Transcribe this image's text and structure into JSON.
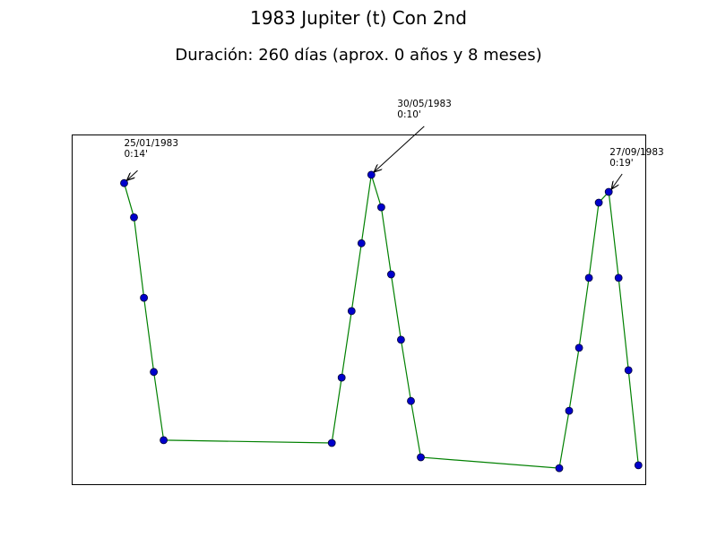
{
  "title": "1983 Jupiter (t) Con 2nd",
  "subtitle": "Duración: 260 días (aprox. 0 años y 8 meses)",
  "colors": {
    "line": "#008000",
    "marker_fill": "#0000cc",
    "marker_edge": "#000033",
    "axes": "#000000"
  },
  "chart_data": {
    "type": "line",
    "title": "1983 Jupiter (t) Con 2nd",
    "subtitle": "Duración: 260 días (aprox. 0 años y 8 meses)",
    "xlabel": "",
    "ylabel": "",
    "grid": false,
    "xlim": [
      0,
      58
    ],
    "ylim": [
      0,
      100
    ],
    "points": [
      {
        "x": 5.3,
        "y": 86.1
      },
      {
        "x": 6.3,
        "y": 76.3
      },
      {
        "x": 7.3,
        "y": 53.3
      },
      {
        "x": 8.3,
        "y": 32.1
      },
      {
        "x": 9.3,
        "y": 12.6
      },
      {
        "x": 26.3,
        "y": 11.8
      },
      {
        "x": 27.3,
        "y": 30.5
      },
      {
        "x": 28.3,
        "y": 49.5
      },
      {
        "x": 29.3,
        "y": 68.9
      },
      {
        "x": 30.3,
        "y": 88.5
      },
      {
        "x": 31.3,
        "y": 79.2
      },
      {
        "x": 32.3,
        "y": 60.0
      },
      {
        "x": 33.3,
        "y": 41.3
      },
      {
        "x": 34.3,
        "y": 23.8
      },
      {
        "x": 35.3,
        "y": 7.7
      },
      {
        "x": 49.3,
        "y": 4.6
      },
      {
        "x": 50.3,
        "y": 21.0
      },
      {
        "x": 51.3,
        "y": 39.0
      },
      {
        "x": 52.3,
        "y": 59.0
      },
      {
        "x": 53.3,
        "y": 80.5
      },
      {
        "x": 54.3,
        "y": 83.6
      },
      {
        "x": 55.3,
        "y": 59.0
      },
      {
        "x": 56.3,
        "y": 32.6
      },
      {
        "x": 57.3,
        "y": 5.4
      }
    ],
    "annotations": [
      {
        "point_index": 0,
        "date": "25/01/1983",
        "value": "0:14'"
      },
      {
        "point_index": 9,
        "date": "30/05/1983",
        "value": "0:10'"
      },
      {
        "point_index": 20,
        "date": "27/09/1983",
        "value": "0:19'"
      }
    ]
  }
}
